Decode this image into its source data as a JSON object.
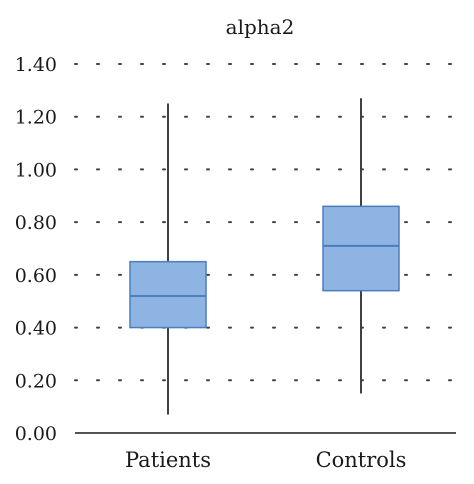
{
  "chart_data": {
    "type": "box",
    "title": "alpha2",
    "xlabel": "",
    "ylabel": "",
    "ylim": [
      0,
      1.4
    ],
    "yticks": [
      "0.00",
      "0.20",
      "0.40",
      "0.60",
      "0.80",
      "1.00",
      "1.20",
      "1.40"
    ],
    "grid": "dotted-horizontal",
    "legend": "none",
    "categories": [
      "Patients",
      "Controls"
    ],
    "boxes": [
      {
        "category": "Patients",
        "min": 0.07,
        "q1": 0.4,
        "median": 0.52,
        "q3": 0.65,
        "max": 1.25
      },
      {
        "category": "Controls",
        "min": 0.15,
        "q1": 0.54,
        "median": 0.71,
        "q3": 0.86,
        "max": 1.27
      }
    ],
    "box_fill": "#8eb4e3",
    "box_stroke": "#4a7ebb",
    "whisker_color": "#404040"
  }
}
